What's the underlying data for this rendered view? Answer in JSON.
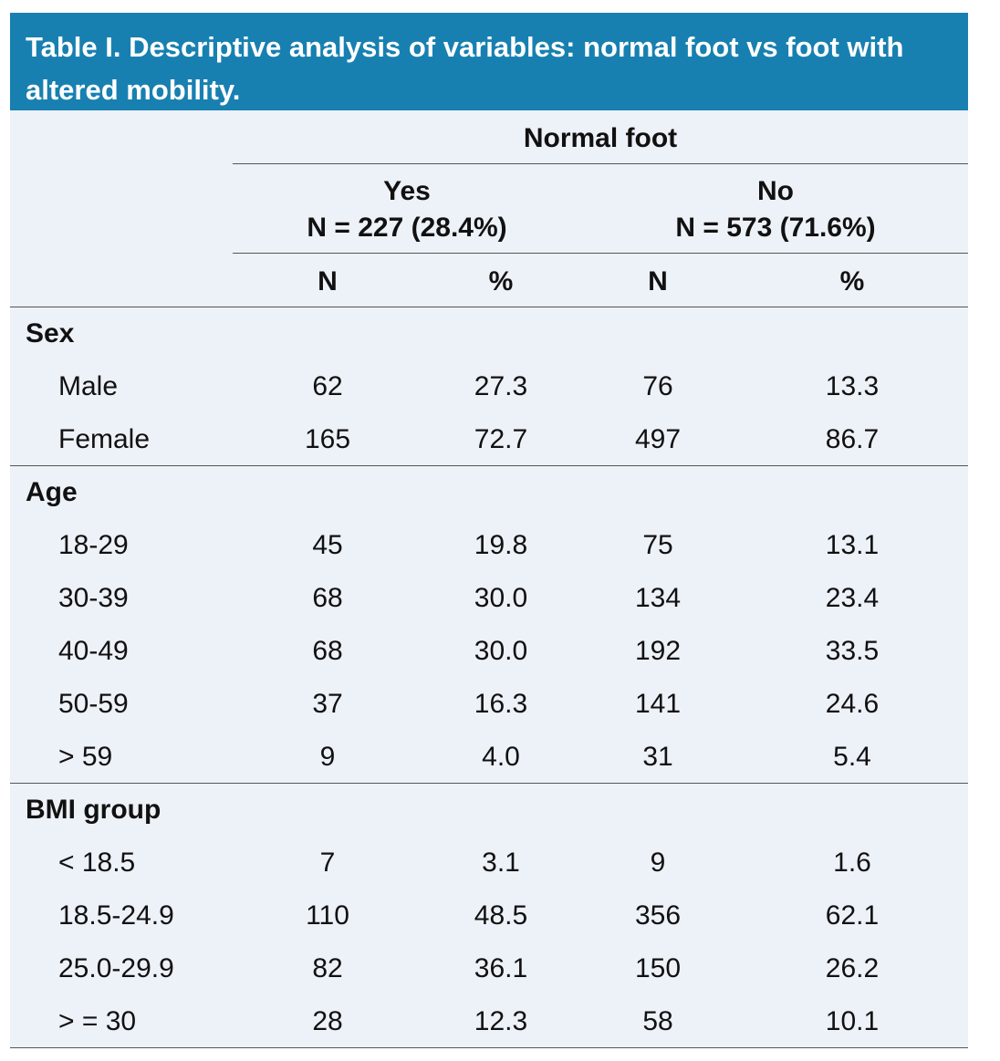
{
  "title": "Table I. Descriptive analysis of variables: normal foot vs foot with altered mobility.",
  "header": {
    "group": "Normal foot",
    "columns": [
      {
        "label": "Yes",
        "n": "N = 227 (28.4%)"
      },
      {
        "label": "No",
        "n": "N = 573 (71.6%)"
      }
    ],
    "subheaders": [
      "N",
      "%",
      "N",
      "%"
    ]
  },
  "sections": [
    {
      "label": "Sex",
      "rows": [
        {
          "label": "Male",
          "cells": [
            "62",
            "27.3",
            "76",
            "13.3"
          ]
        },
        {
          "label": "Female",
          "cells": [
            "165",
            "72.7",
            "497",
            "86.7"
          ]
        }
      ]
    },
    {
      "label": "Age",
      "rows": [
        {
          "label": "18-29",
          "cells": [
            "45",
            "19.8",
            "75",
            "13.1"
          ]
        },
        {
          "label": "30-39",
          "cells": [
            "68",
            "30.0",
            "134",
            "23.4"
          ]
        },
        {
          "label": "40-49",
          "cells": [
            "68",
            "30.0",
            "192",
            "33.5"
          ]
        },
        {
          "label": "50-59",
          "cells": [
            "37",
            "16.3",
            "141",
            "24.6"
          ]
        },
        {
          "label": "> 59",
          "cells": [
            "9",
            "4.0",
            "31",
            "5.4"
          ]
        }
      ]
    },
    {
      "label": "BMI group",
      "rows": [
        {
          "label": "< 18.5",
          "cells": [
            "7",
            "3.1",
            "9",
            "1.6"
          ]
        },
        {
          "label": "18.5-24.9",
          "cells": [
            "110",
            "48.5",
            "356",
            "62.1"
          ]
        },
        {
          "label": "25.0-29.9",
          "cells": [
            "82",
            "36.1",
            "150",
            "26.2"
          ]
        },
        {
          "label": "> = 30",
          "cells": [
            "28",
            "12.3",
            "58",
            "10.1"
          ]
        }
      ]
    }
  ]
}
